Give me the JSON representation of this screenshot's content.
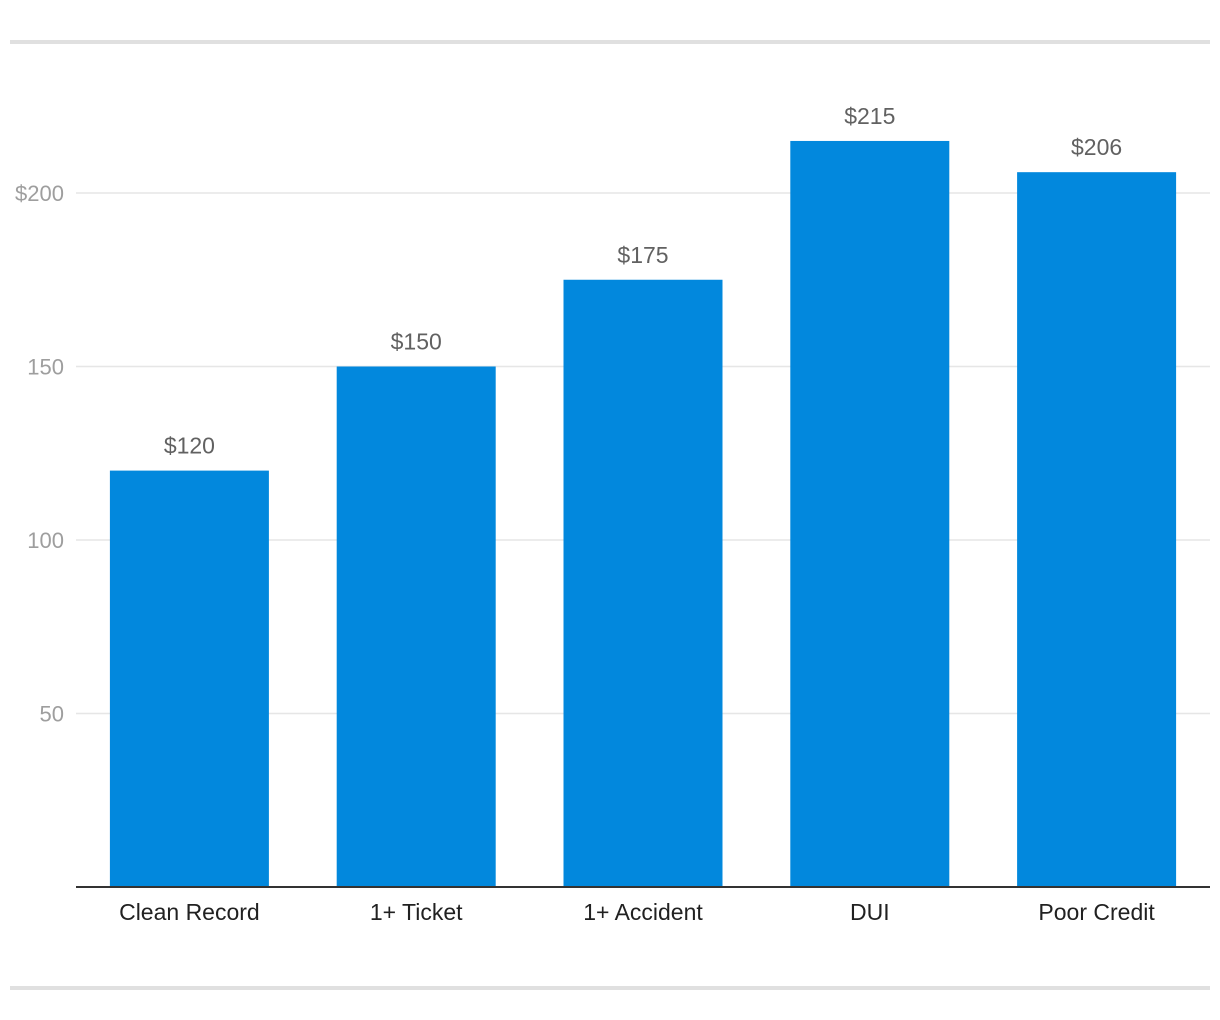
{
  "chart_data": {
    "type": "bar",
    "title": "",
    "xlabel": "",
    "ylabel": "",
    "categories": [
      "Clean Record",
      "1+ Ticket",
      "1+ Accident",
      "DUI",
      "Poor Credit"
    ],
    "values": [
      120,
      150,
      175,
      215,
      206
    ],
    "data_labels": [
      "$120",
      "$150",
      "$175",
      "$215",
      "$206"
    ],
    "y_ticks": [
      {
        "value": 50,
        "label": "50"
      },
      {
        "value": 100,
        "label": "100"
      },
      {
        "value": 150,
        "label": "150"
      },
      {
        "value": 200,
        "label": "$200"
      }
    ],
    "ylim": [
      0,
      250
    ],
    "grid": true,
    "legend": "none",
    "bar_color": "#0288dd",
    "grid_color": "#e6e6e6",
    "axis_color": "#333333"
  }
}
